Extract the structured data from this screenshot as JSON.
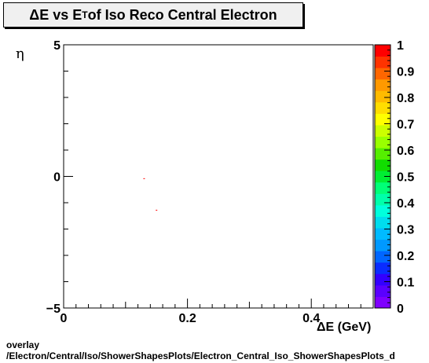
{
  "title": {
    "prefix": "ΔE vs E",
    "subscript": "T",
    "suffix": " of Iso Reco Central  Electron"
  },
  "footer": {
    "line1": "overlay",
    "line2": "/Electron/Central/Iso/ShowerShapesPlots/Electron_Central_Iso_ShowerShapesPlots_d"
  },
  "chart_data": {
    "type": "scatter",
    "title": "ΔE vs ET of Iso Reco Central  Electron",
    "xlabel": "ΔE (GeV)",
    "ylabel": "η",
    "xlim": [
      0,
      0.5
    ],
    "ylim": [
      -5,
      5
    ],
    "x_ticks": [
      "0",
      "0.2",
      "0.4"
    ],
    "y_ticks": [
      "-5",
      "0",
      "5"
    ],
    "points": [
      {
        "x": 0.13,
        "y": -0.1,
        "color": "#ff0000"
      },
      {
        "x": 0.15,
        "y": -1.3,
        "color": "#ff0000"
      }
    ],
    "colorbar": {
      "range": [
        0,
        1
      ],
      "labels": [
        "0",
        "0.1",
        "0.2",
        "0.3",
        "0.4",
        "0.5",
        "0.6",
        "0.7",
        "0.8",
        "0.9",
        "1"
      ],
      "colors": [
        "#7f00ff",
        "#5a00ff",
        "#3300ff",
        "#0a2cff",
        "#0066ff",
        "#0099ff",
        "#00bbff",
        "#00ddee",
        "#00ffdd",
        "#00ffaa",
        "#00ff77",
        "#00ee33",
        "#11dd00",
        "#55ee00",
        "#99ff00",
        "#ccff00",
        "#ffff00",
        "#ffdd00",
        "#ffbb00",
        "#ff9900",
        "#ff6600",
        "#ff3300",
        "#ff0000"
      ]
    }
  }
}
